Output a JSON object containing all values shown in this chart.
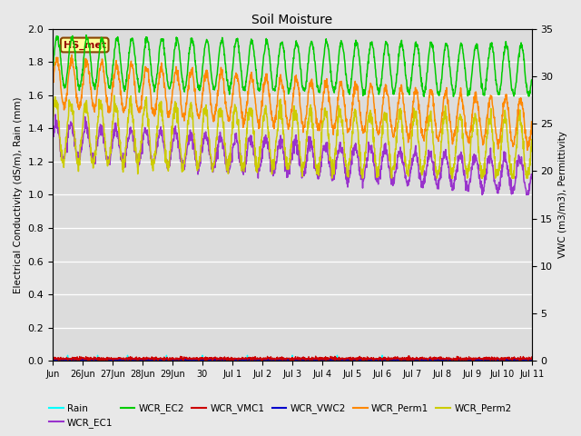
{
  "title": "Soil Moisture",
  "ylabel_left": "Electrical Conductivity (dS/m), Rain (mm)",
  "ylabel_right": "VWC (m3/m3), Permittivity",
  "ylim_left": [
    0.0,
    2.0
  ],
  "ylim_right": [
    0,
    35
  ],
  "bg_color": "#e8e8e8",
  "plot_bg_color": "#dcdcdc",
  "station_label": "HS_met",
  "xtick_labels": [
    "Jun",
    "26Jun",
    "27Jun",
    "28Jun",
    "29Jun",
    "30",
    "Jul 1",
    "Jul 2",
    "Jul 3",
    "Jul 4",
    "Jul 5",
    "Jul 6",
    "Jul 7",
    "Jul 8",
    "Jul 9",
    "Jul 10",
    "Jul 11"
  ],
  "yticks_left": [
    0.0,
    0.2,
    0.4,
    0.6,
    0.8,
    1.0,
    1.2,
    1.4,
    1.6,
    1.8,
    2.0
  ],
  "yticks_right": [
    0,
    5,
    10,
    15,
    20,
    25,
    30,
    35
  ],
  "series_colors": {
    "Rain": "#00ffff",
    "WCR_EC1": "#9933cc",
    "WCR_EC2": "#00cc00",
    "WCR_VMC1": "#cc0000",
    "WCR_VWC2": "#0000cc",
    "WCR_Perm1": "#ff8800",
    "WCR_Perm2": "#cccc00"
  }
}
